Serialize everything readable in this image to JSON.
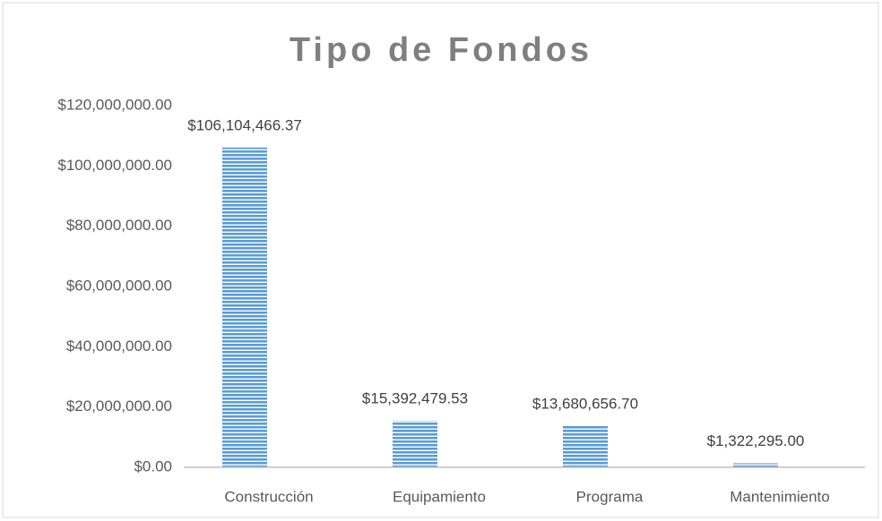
{
  "chart_data": {
    "type": "bar",
    "title": "Tipo de Fondos",
    "categories": [
      "Construcción",
      "Equipamiento",
      "Programa",
      "Mantenimiento"
    ],
    "values": [
      106104466.37,
      15392479.53,
      13680656.7,
      1322295.0
    ],
    "value_labels": [
      "$106,104,466.37",
      "$15,392,479.53",
      "$13,680,656.70",
      "$1,322,295.00"
    ],
    "color": "#5b9bd5",
    "ylim": [
      0,
      120000000
    ],
    "yticks": [
      {
        "value": 0,
        "label": "$0.00"
      },
      {
        "value": 20000000,
        "label": "$20,000,000.00"
      },
      {
        "value": 40000000,
        "label": "$40,000,000.00"
      },
      {
        "value": 60000000,
        "label": "$60,000,000.00"
      },
      {
        "value": 80000000,
        "label": "$80,000,000.00"
      },
      {
        "value": 100000000,
        "label": "$100,000,000.00"
      },
      {
        "value": 120000000,
        "label": "$120,000,000.00"
      }
    ],
    "grid": false
  }
}
